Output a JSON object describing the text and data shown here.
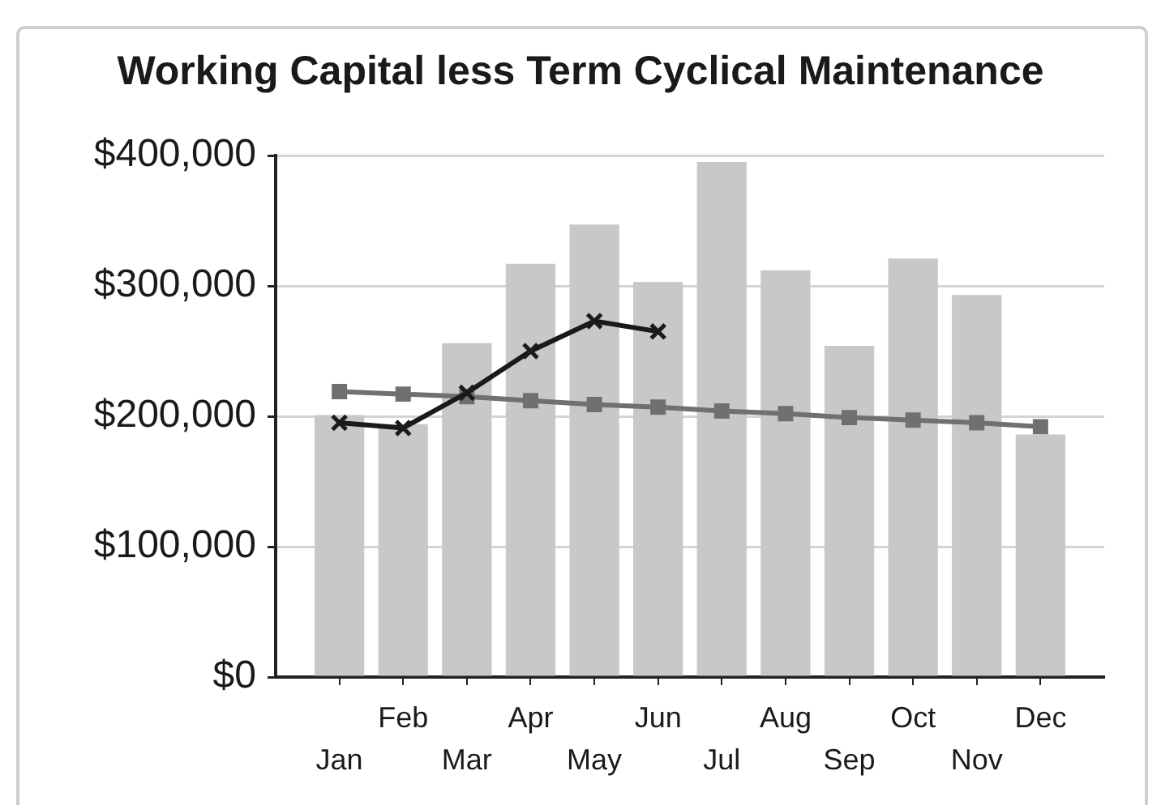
{
  "chart_data": {
    "type": "bar",
    "title": "Working Capital less Term Cyclical Maintenance",
    "categories": [
      "Jan",
      "Feb",
      "Mar",
      "Apr",
      "May",
      "Jun",
      "Jul",
      "Aug",
      "Sep",
      "Oct",
      "Nov",
      "Dec"
    ],
    "series": [
      {
        "color": "#c8c8c8",
        "values": [
          201000,
          194000,
          256000,
          317000,
          347000,
          303000,
          395000,
          312000,
          254000,
          321000,
          293000,
          186000
        ]
      },
      {
        "type": "line",
        "color": "#1a1a1a",
        "marker": "cross",
        "values": [
          195000,
          191000,
          218000,
          250000,
          273000,
          265000,
          null,
          null,
          null,
          null,
          null,
          null
        ]
      },
      {
        "type": "line",
        "color": "#707070",
        "marker": "square",
        "values": [
          219000,
          217000,
          215000,
          212000,
          209000,
          207000,
          204000,
          202000,
          199000,
          197000,
          195000,
          192000
        ]
      }
    ],
    "ylim": [
      0,
      400000
    ],
    "yticks": [
      {
        "value": 0,
        "label": "$0"
      },
      {
        "value": 100000,
        "label": "$100,000"
      },
      {
        "value": 200000,
        "label": "$200,000"
      },
      {
        "value": 300000,
        "label": "$300,000"
      },
      {
        "value": 400000,
        "label": "$400,000"
      }
    ],
    "grid": "y"
  }
}
